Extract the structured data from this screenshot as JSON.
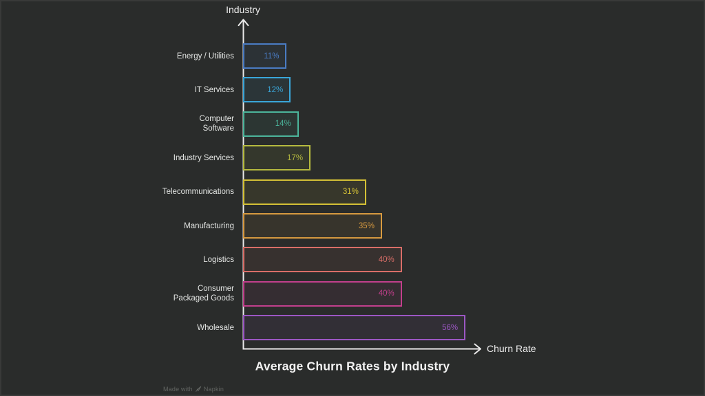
{
  "page": {
    "background_color": "#2a2c2b",
    "title": "Average Churn Rates by Industry",
    "watermark": {
      "text_prefix": "Made with",
      "brand": "Napkin",
      "icon": "napkin-logo-icon"
    }
  },
  "chart_data": {
    "type": "bar",
    "orientation": "horizontal",
    "title": "Average Churn Rates by Industry",
    "xlabel": "Churn Rate",
    "ylabel": "Industry",
    "categories": [
      "Energy / Utilities",
      "IT Services",
      "Computer\nSoftware",
      "Industry Services",
      "Telecommunications",
      "Manufacturing",
      "Logistics",
      "Consumer\nPackaged Goods",
      "Wholesale"
    ],
    "values": [
      11,
      12,
      14,
      17,
      31,
      35,
      40,
      40,
      56
    ],
    "value_suffix": "%",
    "value_label_position": "inside-right",
    "bar_style": "outlined",
    "colors": [
      "#4a7cc4",
      "#3aa6d9",
      "#4cb69c",
      "#b6ba3f",
      "#d4c136",
      "#d79a40",
      "#d96e68",
      "#c23f8c",
      "#9c57c4"
    ],
    "xlim": [
      0,
      60
    ],
    "grid": false,
    "legend": "none",
    "axis_color": "#e9e9e9",
    "label_color": "#e3e5e3"
  }
}
